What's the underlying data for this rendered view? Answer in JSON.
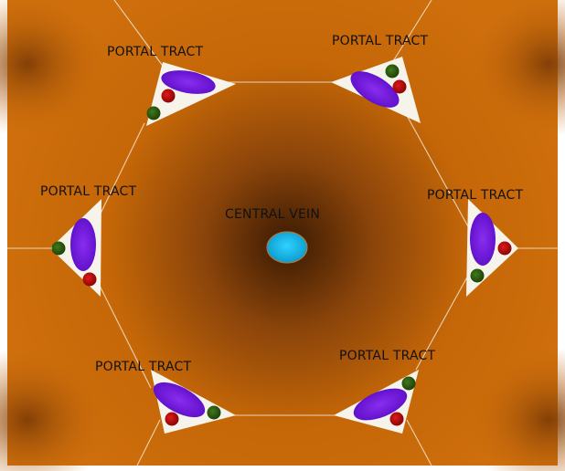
{
  "diagram": {
    "central_vein": {
      "label": "CENTRAL VEIN"
    },
    "portal_tracts": [
      {
        "id": "top-left",
        "label": "PORTAL TRACT"
      },
      {
        "id": "top-right",
        "label": "PORTAL TRACT"
      },
      {
        "id": "left",
        "label": "PORTAL TRACT"
      },
      {
        "id": "right",
        "label": "PORTAL TRACT"
      },
      {
        "id": "bottom-left",
        "label": "PORTAL TRACT"
      },
      {
        "id": "bottom-right",
        "label": "PORTAL TRACT"
      }
    ]
  },
  "colors": {
    "parenchyma": "#c8690a",
    "parenchyma_dark": "#4a2204",
    "central_vein": "#18b4e6",
    "bile_duct": "#7a16e0",
    "hepatic_artery": "#b00b0b",
    "portal_vein": "#2f5f12",
    "portal_tract_bg": "#f6f4ea"
  }
}
